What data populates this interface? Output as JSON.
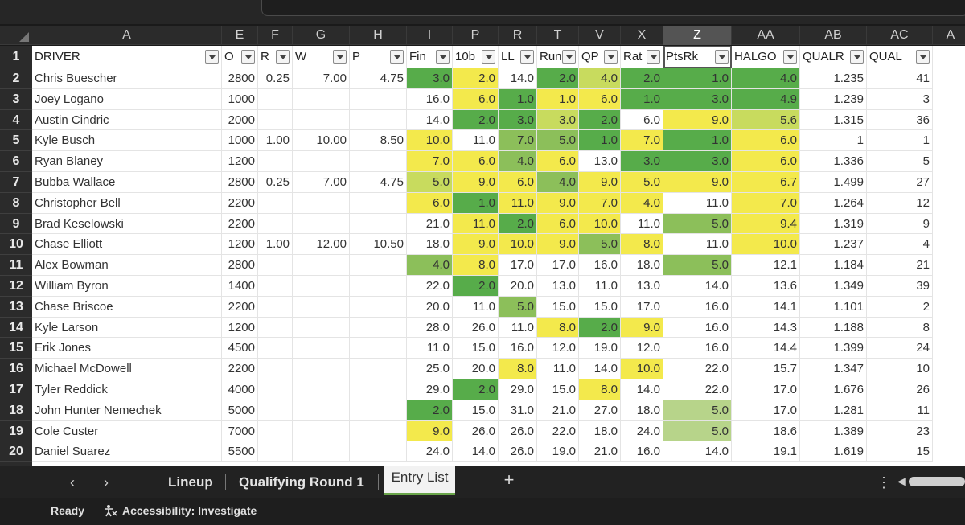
{
  "columns": [
    {
      "letter": "A"
    },
    {
      "letter": "E"
    },
    {
      "letter": "F"
    },
    {
      "letter": "G"
    },
    {
      "letter": "H"
    },
    {
      "letter": "I"
    },
    {
      "letter": "P"
    },
    {
      "letter": "R"
    },
    {
      "letter": "T"
    },
    {
      "letter": "V"
    },
    {
      "letter": "X"
    },
    {
      "letter": "Z"
    },
    {
      "letter": "AA"
    },
    {
      "letter": "AB"
    },
    {
      "letter": "AC"
    },
    {
      "letter": "A"
    }
  ],
  "selected_column": "Z",
  "header_row": {
    "num": "1",
    "cells": [
      "DRIVER",
      "O",
      "R",
      "W",
      "P",
      "Fin",
      "10b",
      "LL",
      "Run",
      "QP",
      "Rat",
      "PtsRk",
      "HALGO",
      "QUALR",
      "QUAL"
    ]
  },
  "rows": [
    {
      "num": "2",
      "cells": [
        "Chris Buescher",
        "2800",
        "0.25",
        "7.00",
        "4.75",
        "3.0",
        "2.0",
        "14.0",
        "2.0",
        "4.0",
        "2.0",
        "1.0",
        "4.0",
        "1.235",
        "41"
      ]
    },
    {
      "num": "3",
      "cells": [
        "Joey Logano",
        "1000",
        "",
        "",
        "",
        "16.0",
        "6.0",
        "1.0",
        "1.0",
        "6.0",
        "1.0",
        "3.0",
        "4.9",
        "1.239",
        "3"
      ]
    },
    {
      "num": "4",
      "cells": [
        "Austin Cindric",
        "2000",
        "",
        "",
        "",
        "14.0",
        "2.0",
        "3.0",
        "3.0",
        "2.0",
        "6.0",
        "9.0",
        "5.6",
        "1.315",
        "36"
      ]
    },
    {
      "num": "5",
      "cells": [
        "Kyle Busch",
        "1000",
        "1.00",
        "10.00",
        "8.50",
        "10.0",
        "11.0",
        "7.0",
        "5.0",
        "1.0",
        "7.0",
        "1.0",
        "6.0",
        "1",
        "1"
      ]
    },
    {
      "num": "6",
      "cells": [
        "Ryan Blaney",
        "1200",
        "",
        "",
        "",
        "7.0",
        "6.0",
        "4.0",
        "6.0",
        "13.0",
        "3.0",
        "3.0",
        "6.0",
        "1.336",
        "5"
      ]
    },
    {
      "num": "7",
      "cells": [
        "Bubba Wallace",
        "2800",
        "0.25",
        "7.00",
        "4.75",
        "5.0",
        "9.0",
        "6.0",
        "4.0",
        "9.0",
        "5.0",
        "9.0",
        "6.7",
        "1.499",
        "27"
      ]
    },
    {
      "num": "8",
      "cells": [
        "Christopher Bell",
        "2200",
        "",
        "",
        "",
        "6.0",
        "1.0",
        "11.0",
        "9.0",
        "7.0",
        "4.0",
        "11.0",
        "7.0",
        "1.264",
        "12"
      ]
    },
    {
      "num": "9",
      "cells": [
        "Brad Keselowski",
        "2200",
        "",
        "",
        "",
        "21.0",
        "11.0",
        "2.0",
        "6.0",
        "10.0",
        "11.0",
        "5.0",
        "9.4",
        "1.319",
        "9"
      ]
    },
    {
      "num": "10",
      "cells": [
        "Chase Elliott",
        "1200",
        "1.00",
        "12.00",
        "10.50",
        "18.0",
        "9.0",
        "10.0",
        "9.0",
        "5.0",
        "8.0",
        "11.0",
        "10.0",
        "1.237",
        "4"
      ]
    },
    {
      "num": "11",
      "cells": [
        "Alex Bowman",
        "2800",
        "",
        "",
        "",
        "4.0",
        "8.0",
        "17.0",
        "17.0",
        "16.0",
        "18.0",
        "5.0",
        "12.1",
        "1.184",
        "21"
      ]
    },
    {
      "num": "12",
      "cells": [
        "William Byron",
        "1400",
        "",
        "",
        "",
        "22.0",
        "2.0",
        "20.0",
        "13.0",
        "11.0",
        "13.0",
        "14.0",
        "13.6",
        "1.349",
        "39"
      ]
    },
    {
      "num": "13",
      "cells": [
        "Chase Briscoe",
        "2200",
        "",
        "",
        "",
        "20.0",
        "11.0",
        "5.0",
        "15.0",
        "15.0",
        "17.0",
        "16.0",
        "14.1",
        "1.101",
        "2"
      ]
    },
    {
      "num": "14",
      "cells": [
        "Kyle Larson",
        "1200",
        "",
        "",
        "",
        "28.0",
        "26.0",
        "11.0",
        "8.0",
        "2.0",
        "9.0",
        "16.0",
        "14.3",
        "1.188",
        "8"
      ]
    },
    {
      "num": "15",
      "cells": [
        "Erik Jones",
        "4500",
        "",
        "",
        "",
        "11.0",
        "15.0",
        "16.0",
        "12.0",
        "19.0",
        "12.0",
        "16.0",
        "14.4",
        "1.399",
        "24"
      ]
    },
    {
      "num": "16",
      "cells": [
        "Michael McDowell",
        "2200",
        "",
        "",
        "",
        "25.0",
        "20.0",
        "8.0",
        "11.0",
        "14.0",
        "10.0",
        "22.0",
        "15.7",
        "1.347",
        "10"
      ]
    },
    {
      "num": "17",
      "cells": [
        "Tyler Reddick",
        "4000",
        "",
        "",
        "",
        "29.0",
        "2.0",
        "29.0",
        "15.0",
        "8.0",
        "14.0",
        "22.0",
        "17.0",
        "1.676",
        "26"
      ]
    },
    {
      "num": "18",
      "cells": [
        "John Hunter Nemechek",
        "5000",
        "",
        "",
        "",
        "2.0",
        "15.0",
        "31.0",
        "21.0",
        "27.0",
        "18.0",
        "5.0",
        "17.0",
        "1.281",
        "11"
      ]
    },
    {
      "num": "19",
      "cells": [
        "Cole Custer",
        "7000",
        "",
        "",
        "",
        "9.0",
        "26.0",
        "26.0",
        "22.0",
        "18.0",
        "24.0",
        "5.0",
        "18.6",
        "1.389",
        "23"
      ]
    },
    {
      "num": "20",
      "cells": [
        "Daniel Suarez",
        "5500",
        "",
        "",
        "",
        "24.0",
        "14.0",
        "26.0",
        "19.0",
        "21.0",
        "16.0",
        "14.0",
        "19.1",
        "1.619",
        "15"
      ]
    }
  ],
  "tabs": {
    "lineup": "Lineup",
    "qualifying": "Qualifying Round 1",
    "entry": "Entry List",
    "add": "+"
  },
  "status": {
    "ready": "Ready",
    "accessibility": "Accessibility: Investigate"
  },
  "colors": {
    "dark_green": "#3f9f48",
    "green": "#57ac4a",
    "light_green": "#8cbf5a",
    "pale_green": "#b7d48a",
    "yellow_green": "#c8db5e",
    "yellow": "#f3e94c",
    "light_yellow": "#f6ef72",
    "white": "#ffffff"
  },
  "icons": {
    "prev": "chevron-left-icon",
    "next": "chevron-right-icon",
    "dropdown": "filter-dropdown-icon",
    "sort": "sort-filter-icon",
    "accessibility": "accessibility-icon",
    "more": "more-vertical-icon"
  }
}
